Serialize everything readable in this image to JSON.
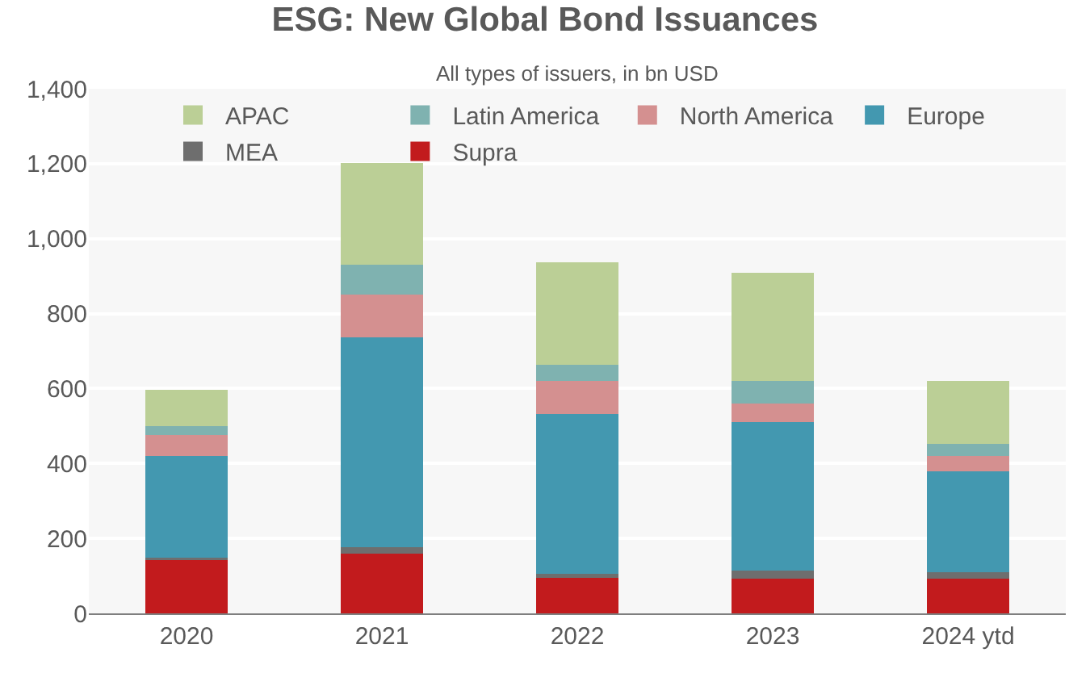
{
  "chart_data": {
    "type": "bar",
    "stacked": true,
    "title": "ESG: New Global Bond Issuances",
    "subtitle": "All types of issuers, in bn USD",
    "categories": [
      "2020",
      "2021",
      "2022",
      "2023",
      "2024 ytd"
    ],
    "series": [
      {
        "name": "Supra",
        "color": "#c21b1d",
        "values": [
          145,
          159,
          98,
          92,
          92
        ]
      },
      {
        "name": "MEA",
        "color": "#6e6e6e",
        "values": [
          3,
          17,
          8,
          22,
          17
        ]
      },
      {
        "name": "Europe",
        "color": "#4398b0",
        "values": [
          272,
          560,
          426,
          396,
          271
        ]
      },
      {
        "name": "North America",
        "color": "#d49090",
        "values": [
          57,
          115,
          88,
          51,
          41
        ]
      },
      {
        "name": "Latin America",
        "color": "#7fb2b0",
        "values": [
          22,
          80,
          43,
          59,
          31
        ]
      },
      {
        "name": "APAC",
        "color": "#bbcf96",
        "values": [
          98,
          270,
          274,
          288,
          168
        ]
      }
    ],
    "ylim": [
      0,
      1400
    ],
    "yticks": [
      0,
      {
        "value": 200,
        "label": "200"
      },
      {
        "value": 400,
        "label": "400"
      },
      {
        "value": 600,
        "label": "600"
      },
      {
        "value": 800,
        "label": "800"
      },
      {
        "value": 1000,
        "label": "1,000"
      },
      {
        "value": 1200,
        "label": "1,200"
      },
      {
        "value": 1400,
        "label": "1,400"
      }
    ],
    "grid": "y",
    "legend": "top"
  }
}
